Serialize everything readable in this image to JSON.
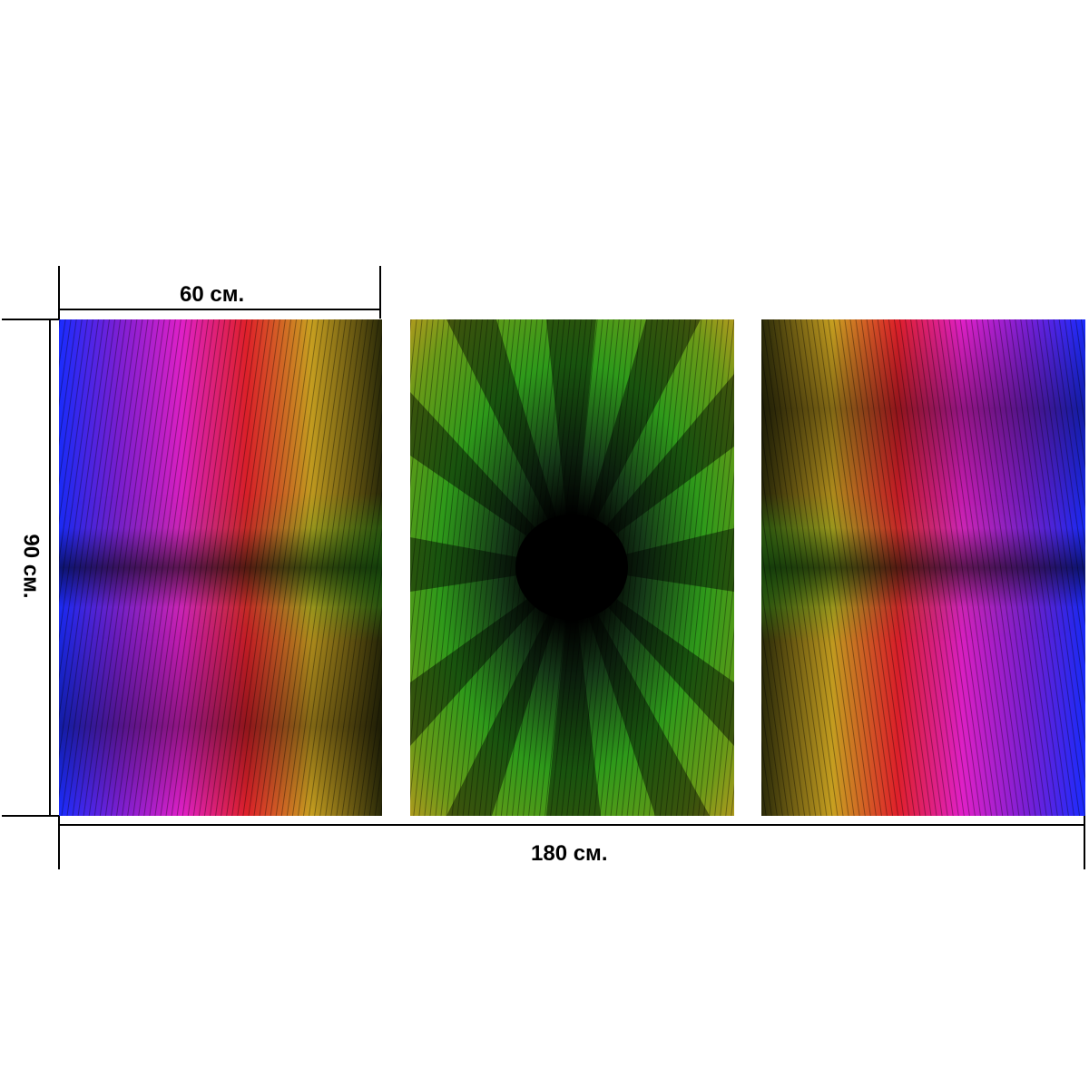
{
  "dimensions": {
    "panel_width_label": "60 см.",
    "height_label": "90 см.",
    "total_width_label": "180 см."
  },
  "panels": [
    {
      "name": "left",
      "theme": "rainbow-waves"
    },
    {
      "name": "center",
      "theme": "green-starburst"
    },
    {
      "name": "right",
      "theme": "rainbow-waves-mirrored"
    }
  ],
  "colors": {
    "blue": "#1a2cff",
    "purple": "#7a1fd6",
    "magenta": "#e020c8",
    "red": "#e0202a",
    "orange": "#d85a10",
    "yellow": "#c8b020",
    "green": "#2e9a1a",
    "dark": "#050505"
  }
}
